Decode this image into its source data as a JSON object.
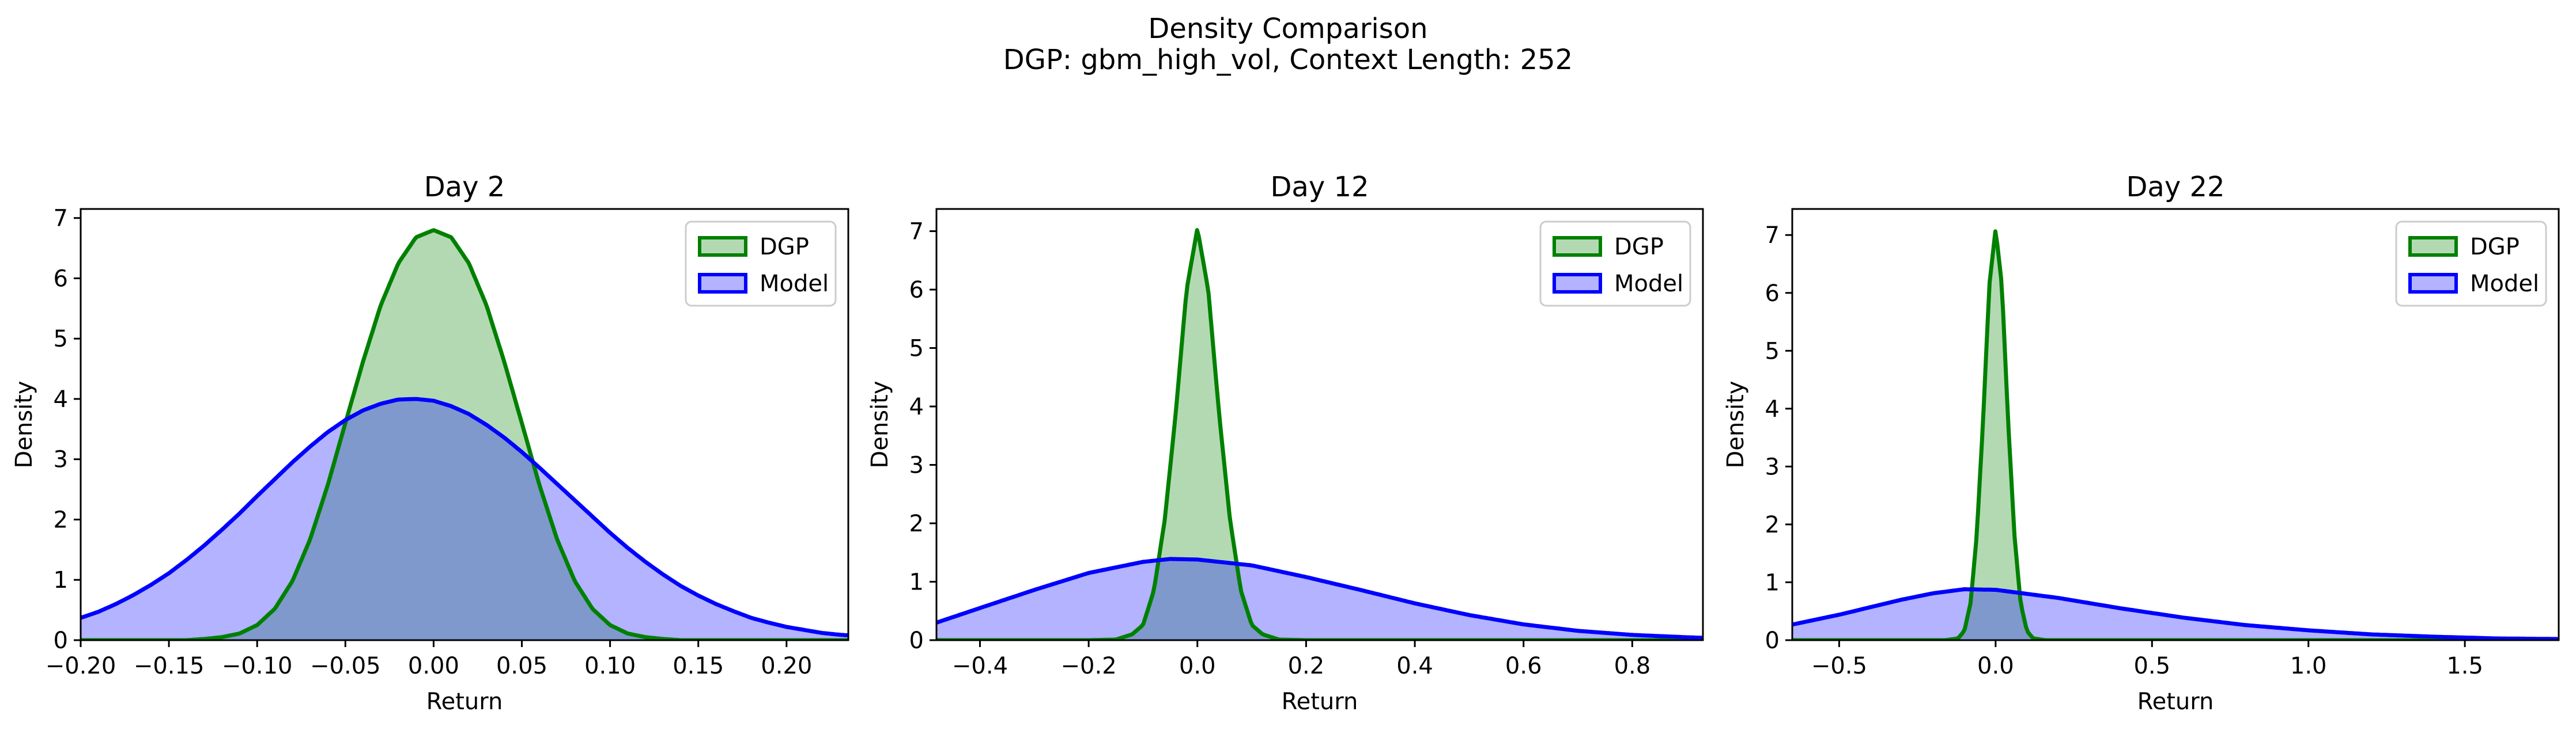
{
  "figure": {
    "suptitle_line1": "Density Comparison",
    "suptitle_line2": "DGP: gbm_high_vol, Context Length: 252"
  },
  "colors": {
    "dgp_line": "#008000",
    "dgp_fill": "#B3D9B3",
    "model_line": "#0000FF",
    "model_fill": "#B3B3FF",
    "overlap_fill": "#7F99CC"
  },
  "chart_data": [
    {
      "type": "area",
      "title": "Day 2",
      "xlabel": "Return",
      "ylabel": "Density",
      "xlim": [
        -0.2,
        0.235
      ],
      "ylim": [
        0,
        7.15
      ],
      "xticks": [
        -0.2,
        -0.15,
        -0.1,
        -0.05,
        0.0,
        0.05,
        0.1,
        0.15,
        0.2
      ],
      "xtick_labels": [
        "−0.20",
        "−0.15",
        "−0.10",
        "−0.05",
        "0.00",
        "0.05",
        "0.10",
        "0.15",
        "0.20"
      ],
      "yticks": [
        0,
        1,
        2,
        3,
        4,
        5,
        6,
        7
      ],
      "ytick_labels": [
        "0",
        "1",
        "2",
        "3",
        "4",
        "5",
        "6",
        "7"
      ],
      "legend": {
        "position": "top-right",
        "entries": [
          "DGP",
          "Model"
        ]
      },
      "grid": false,
      "series": [
        {
          "name": "DGP",
          "x": [
            -0.2,
            -0.19,
            -0.18,
            -0.17,
            -0.16,
            -0.15,
            -0.14,
            -0.13,
            -0.12,
            -0.11,
            -0.1,
            -0.09,
            -0.08,
            -0.07,
            -0.06,
            -0.05,
            -0.04,
            -0.03,
            -0.02,
            -0.01,
            0.0,
            0.01,
            0.02,
            0.03,
            0.04,
            0.05,
            0.06,
            0.07,
            0.08,
            0.09,
            0.1,
            0.11,
            0.12,
            0.13,
            0.14,
            0.15,
            0.16,
            0.17,
            0.18,
            0.19,
            0.2,
            0.21,
            0.22,
            0.23,
            0.235
          ],
          "y": [
            0.0,
            0.0,
            0.0,
            0.0,
            0.0,
            0.0,
            0.0,
            0.02,
            0.05,
            0.11,
            0.25,
            0.52,
            0.98,
            1.67,
            2.57,
            3.6,
            4.62,
            5.55,
            6.25,
            6.68,
            6.8,
            6.68,
            6.25,
            5.55,
            4.62,
            3.6,
            2.57,
            1.67,
            0.98,
            0.52,
            0.25,
            0.11,
            0.05,
            0.02,
            0.0,
            0.0,
            0.0,
            0.0,
            0.0,
            0.0,
            0.0,
            0.0,
            0.0,
            0.0,
            0.0
          ]
        },
        {
          "name": "Model",
          "x": [
            -0.2,
            -0.19,
            -0.18,
            -0.17,
            -0.16,
            -0.15,
            -0.14,
            -0.13,
            -0.12,
            -0.11,
            -0.1,
            -0.09,
            -0.08,
            -0.07,
            -0.06,
            -0.05,
            -0.04,
            -0.03,
            -0.02,
            -0.01,
            0.0,
            0.01,
            0.02,
            0.03,
            0.04,
            0.05,
            0.06,
            0.07,
            0.08,
            0.09,
            0.1,
            0.11,
            0.12,
            0.13,
            0.14,
            0.15,
            0.16,
            0.17,
            0.18,
            0.19,
            0.2,
            0.21,
            0.22,
            0.23,
            0.235
          ],
          "y": [
            0.37,
            0.47,
            0.6,
            0.75,
            0.92,
            1.11,
            1.33,
            1.57,
            1.83,
            2.1,
            2.39,
            2.67,
            2.95,
            3.21,
            3.45,
            3.65,
            3.81,
            3.92,
            3.99,
            4.0,
            3.97,
            3.88,
            3.75,
            3.57,
            3.36,
            3.12,
            2.86,
            2.59,
            2.32,
            2.05,
            1.78,
            1.53,
            1.3,
            1.09,
            0.9,
            0.74,
            0.6,
            0.48,
            0.37,
            0.29,
            0.22,
            0.17,
            0.12,
            0.09,
            0.08
          ]
        }
      ]
    },
    {
      "type": "area",
      "title": "Day 12",
      "xlabel": "Return",
      "ylabel": "Density",
      "xlim": [
        -0.48,
        0.93
      ],
      "ylim": [
        0,
        7.38
      ],
      "xticks": [
        -0.4,
        -0.2,
        0.0,
        0.2,
        0.4,
        0.6,
        0.8
      ],
      "xtick_labels": [
        "−0.4",
        "−0.2",
        "0.0",
        "0.2",
        "0.4",
        "0.6",
        "0.8"
      ],
      "yticks": [
        0,
        1,
        2,
        3,
        4,
        5,
        6,
        7
      ],
      "ytick_labels": [
        "0",
        "1",
        "2",
        "3",
        "4",
        "5",
        "6",
        "7"
      ],
      "legend": {
        "position": "top-right",
        "entries": [
          "DGP",
          "Model"
        ]
      },
      "grid": false,
      "series": [
        {
          "name": "DGP",
          "x": [
            -0.48,
            -0.2,
            -0.15,
            -0.12,
            -0.1,
            -0.08,
            -0.06,
            -0.04,
            -0.02,
            0.0,
            0.02,
            0.04,
            0.06,
            0.08,
            0.1,
            0.12,
            0.15,
            0.2,
            0.93
          ],
          "y": [
            0.0,
            0.0,
            0.01,
            0.1,
            0.26,
            0.85,
            2.06,
            3.87,
            5.99,
            7.05,
            5.99,
            3.87,
            2.06,
            0.85,
            0.26,
            0.1,
            0.01,
            0.0,
            0.0
          ]
        },
        {
          "name": "Model",
          "x": [
            -0.48,
            -0.4,
            -0.3,
            -0.2,
            -0.1,
            -0.05,
            0.0,
            0.1,
            0.2,
            0.3,
            0.4,
            0.5,
            0.6,
            0.7,
            0.8,
            0.9,
            0.93
          ],
          "y": [
            0.3,
            0.55,
            0.86,
            1.15,
            1.34,
            1.39,
            1.38,
            1.28,
            1.08,
            0.86,
            0.63,
            0.43,
            0.27,
            0.16,
            0.09,
            0.05,
            0.04
          ]
        }
      ]
    },
    {
      "type": "area",
      "title": "Day 22",
      "xlabel": "Return",
      "ylabel": "Density",
      "xlim": [
        -0.65,
        1.8
      ],
      "ylim": [
        0,
        7.45
      ],
      "xticks": [
        -0.5,
        0.0,
        0.5,
        1.0,
        1.5
      ],
      "xtick_labels": [
        "−0.5",
        "0.0",
        "0.5",
        "1.0",
        "1.5"
      ],
      "yticks": [
        0,
        1,
        2,
        3,
        4,
        5,
        6,
        7
      ],
      "ytick_labels": [
        "0",
        "1",
        "2",
        "3",
        "4",
        "5",
        "6",
        "7"
      ],
      "legend": {
        "position": "top-right",
        "entries": [
          "DGP",
          "Model"
        ]
      },
      "grid": false,
      "series": [
        {
          "name": "DGP",
          "x": [
            -0.65,
            -0.16,
            -0.12,
            -0.1,
            -0.08,
            -0.06,
            -0.04,
            -0.02,
            0.0,
            0.02,
            0.04,
            0.06,
            0.08,
            0.1,
            0.12,
            0.16,
            1.8
          ],
          "y": [
            0.0,
            0.0,
            0.03,
            0.16,
            0.64,
            1.83,
            3.79,
            6.14,
            7.1,
            6.14,
            3.79,
            1.83,
            0.64,
            0.16,
            0.03,
            0.0,
            0.0
          ]
        },
        {
          "name": "Model",
          "x": [
            -0.65,
            -0.5,
            -0.4,
            -0.3,
            -0.2,
            -0.1,
            0.0,
            0.2,
            0.4,
            0.6,
            0.8,
            1.0,
            1.2,
            1.4,
            1.6,
            1.8
          ],
          "y": [
            0.27,
            0.44,
            0.57,
            0.7,
            0.81,
            0.88,
            0.87,
            0.73,
            0.55,
            0.39,
            0.26,
            0.17,
            0.1,
            0.06,
            0.03,
            0.02
          ]
        }
      ]
    }
  ]
}
